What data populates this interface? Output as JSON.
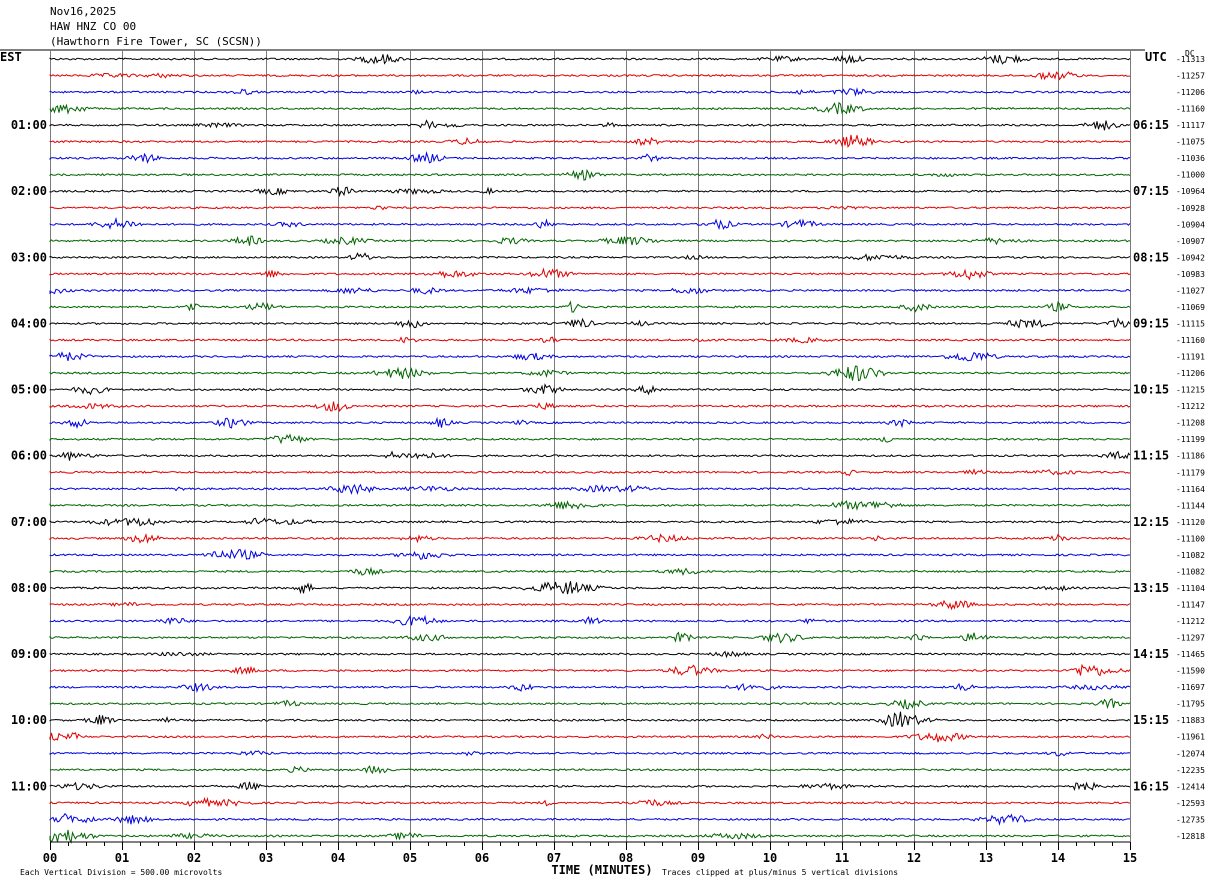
{
  "header": {
    "date": "Nov16,2025",
    "station": "HAW HNZ CO 00",
    "location": "(Hawthorn Fire Tower, SC (SCSN))"
  },
  "chart_data": {
    "type": "line",
    "title": "Nov16,2025",
    "xlabel": "TIME (MINUTES)",
    "x_ticks": [
      "00",
      "01",
      "02",
      "03",
      "04",
      "05",
      "06",
      "07",
      "08",
      "09",
      "10",
      "11",
      "12",
      "13",
      "14",
      "15"
    ],
    "xlim": [
      0,
      15
    ],
    "left_axis_label": "EST",
    "right_axis_label": "UTC",
    "dc_label": "DC",
    "est_hour_labels": [
      "01:00",
      "02:00",
      "03:00",
      "04:00",
      "05:00",
      "06:00",
      "07:00",
      "08:00",
      "09:00",
      "10:00",
      "11:00"
    ],
    "utc_labels": [
      "06:15",
      "07:15",
      "08:15",
      "09:15",
      "10:15",
      "11:15",
      "12:15",
      "13:15",
      "14:15",
      "15:15",
      "16:15"
    ],
    "trace_colors": [
      "#000000",
      "#e00000",
      "#0000e0",
      "#006400"
    ],
    "dc_offsets": [
      -11313,
      -11257,
      -11206,
      -11160,
      -11117,
      -11075,
      -11036,
      -11000,
      -10964,
      -10928,
      -10904,
      -10907,
      -10942,
      -10983,
      -11027,
      -11069,
      -11115,
      -11160,
      -11191,
      -11206,
      -11215,
      -11212,
      -11208,
      -11199,
      -11186,
      -11179,
      -11164,
      -11144,
      -11120,
      -11100,
      -11082,
      -11082,
      -11104,
      -11147,
      -11212,
      -11297,
      -11465,
      -11590,
      -11697,
      -11795,
      -11883,
      -11961,
      -12074,
      -12235,
      -12414,
      -12593,
      -12735,
      -12818
    ],
    "grid": true,
    "footer_left": "Each Vertical Division =  500.00 microvolts",
    "footer_right": "Traces clipped at plus/minus 5 vertical divisions"
  }
}
